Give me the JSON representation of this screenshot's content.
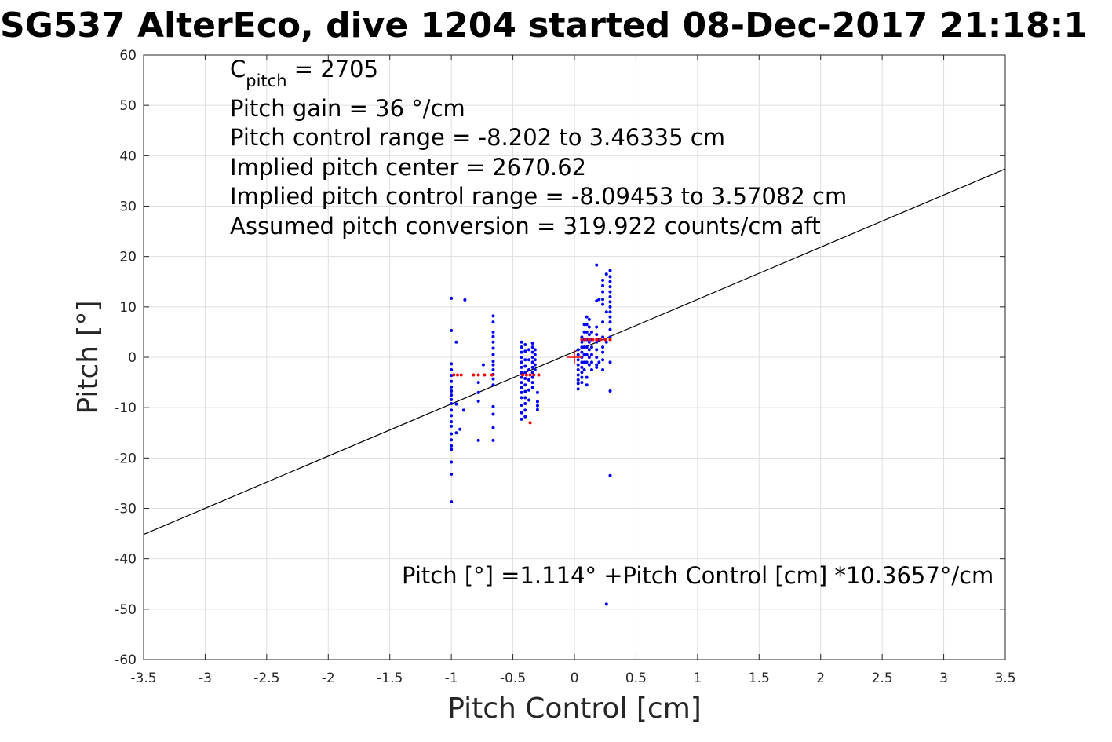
{
  "chart_data": {
    "type": "scatter",
    "title": "SG537 AlterEco, dive 1204 started 08-Dec-2017 21:18:1",
    "xlabel": "Pitch Control [cm]",
    "ylabel": "Pitch [°]",
    "xlim": [
      -3.5,
      3.5
    ],
    "ylim": [
      -60,
      60
    ],
    "grid": true,
    "x_ticks": [
      "-3.5",
      "-3",
      "-2.5",
      "-2",
      "-1.5",
      "-1",
      "-0.5",
      "0",
      "0.5",
      "1",
      "1.5",
      "2",
      "2.5",
      "3",
      "3.5"
    ],
    "y_ticks": [
      "60",
      "50",
      "40",
      "30",
      "20",
      "10",
      "0",
      "-10",
      "-20",
      "-30",
      "-40",
      "-50",
      "-60"
    ],
    "annotations": {
      "c_pitch_label": "C",
      "c_pitch_sub": "pitch",
      "c_pitch_value": " = 2705",
      "pitch_gain": "Pitch gain = 36 °/cm",
      "control_range": "Pitch control range = -8.202 to 3.46335 cm",
      "implied_center": "Implied pitch center = 2670.62",
      "implied_range": "Implied pitch control range = -8.09453 to 3.57082 cm",
      "conversion": "Assumed pitch conversion = 319.922 counts/cm aft",
      "fit_equation": "Pitch [°] =1.114° +Pitch Control [cm] *10.3657°/cm"
    },
    "fit": {
      "intercept": 1.114,
      "slope": 10.3657,
      "color": "#000000"
    },
    "center_marker": {
      "x": 0,
      "y": 0,
      "color": "#ff0000"
    },
    "series": [
      {
        "color": "#0000ff",
        "points": [
          [
            -1.0,
            11.7
          ],
          [
            -1.0,
            5.3
          ],
          [
            -1.0,
            -1.3
          ],
          [
            -1.0,
            -2.5
          ],
          [
            -1.0,
            -3.6
          ],
          [
            -1.0,
            -4.8
          ],
          [
            -1.0,
            -5.9
          ],
          [
            -1.0,
            -6.7
          ],
          [
            -1.0,
            -7.5
          ],
          [
            -1.0,
            -8.4
          ],
          [
            -1.0,
            -9.2
          ],
          [
            -1.0,
            -10.5
          ],
          [
            -1.0,
            -11.6
          ],
          [
            -1.0,
            -12.8
          ],
          [
            -1.0,
            -13.7
          ],
          [
            -1.0,
            -15.2
          ],
          [
            -1.0,
            -16.4
          ],
          [
            -1.0,
            -17.6
          ],
          [
            -1.0,
            -18.3
          ],
          [
            -1.0,
            -20.8
          ],
          [
            -1.0,
            -23.2
          ],
          [
            -1.0,
            -28.7
          ],
          [
            -0.96,
            3.0
          ],
          [
            -0.96,
            -9.3
          ],
          [
            -0.96,
            -15.0
          ],
          [
            -0.93,
            -14.3
          ],
          [
            -0.9,
            -10.5
          ],
          [
            -0.89,
            11.4
          ],
          [
            -0.78,
            -5.0
          ],
          [
            -0.78,
            -7.0
          ],
          [
            -0.78,
            -8.7
          ],
          [
            -0.78,
            -16.5
          ],
          [
            -0.74,
            -1.5
          ],
          [
            -0.66,
            8.2
          ],
          [
            -0.66,
            7.0
          ],
          [
            -0.66,
            5.0
          ],
          [
            -0.66,
            4.1
          ],
          [
            -0.66,
            3.0
          ],
          [
            -0.66,
            1.8
          ],
          [
            -0.66,
            0.5
          ],
          [
            -0.66,
            -0.8
          ],
          [
            -0.66,
            -1.5
          ],
          [
            -0.66,
            -2.5
          ],
          [
            -0.66,
            -3.4
          ],
          [
            -0.66,
            -4.3
          ],
          [
            -0.66,
            -5.5
          ],
          [
            -0.66,
            -9.8
          ],
          [
            -0.66,
            -11.3
          ],
          [
            -0.66,
            -14.0
          ],
          [
            -0.66,
            -16.5
          ],
          [
            -0.43,
            3.0
          ],
          [
            -0.43,
            2.0
          ],
          [
            -0.43,
            1.0
          ],
          [
            -0.43,
            0.0
          ],
          [
            -0.43,
            -1.0
          ],
          [
            -0.43,
            -2.0
          ],
          [
            -0.43,
            -3.0
          ],
          [
            -0.43,
            -4.0
          ],
          [
            -0.43,
            -5.0
          ],
          [
            -0.43,
            -6.0
          ],
          [
            -0.43,
            -7.0
          ],
          [
            -0.43,
            -8.0
          ],
          [
            -0.43,
            -9.5
          ],
          [
            -0.43,
            -11.0
          ],
          [
            -0.43,
            -12.3
          ],
          [
            -0.4,
            2.5
          ],
          [
            -0.4,
            1.2
          ],
          [
            -0.4,
            -0.5
          ],
          [
            -0.4,
            -1.8
          ],
          [
            -0.4,
            -3.0
          ],
          [
            -0.4,
            -4.2
          ],
          [
            -0.4,
            -5.5
          ],
          [
            -0.4,
            -6.8
          ],
          [
            -0.4,
            -8.0
          ],
          [
            -0.4,
            -9.2
          ],
          [
            -0.4,
            -10.5
          ],
          [
            -0.4,
            -11.8
          ],
          [
            -0.37,
            1.5
          ],
          [
            -0.37,
            -0.5
          ],
          [
            -0.37,
            -2.5
          ],
          [
            -0.37,
            -4.5
          ],
          [
            -0.37,
            -6.5
          ],
          [
            -0.37,
            -8.5
          ],
          [
            -0.34,
            2.8
          ],
          [
            -0.34,
            2.0
          ],
          [
            -0.34,
            1.0
          ],
          [
            -0.34,
            0.0
          ],
          [
            -0.34,
            -1.0
          ],
          [
            -0.34,
            -2.0
          ],
          [
            -0.34,
            -3.0
          ],
          [
            -0.34,
            -4.0
          ],
          [
            -0.34,
            -5.0
          ],
          [
            -0.34,
            -6.0
          ],
          [
            -0.32,
            1.5
          ],
          [
            -0.32,
            0.5
          ],
          [
            -0.32,
            -0.5
          ],
          [
            -0.32,
            -1.5
          ],
          [
            -0.32,
            -2.5
          ],
          [
            -0.3,
            -7.0
          ],
          [
            -0.3,
            -8.8
          ],
          [
            -0.3,
            -9.6
          ],
          [
            -0.3,
            -10.4
          ],
          [
            0.03,
            1.5
          ],
          [
            0.03,
            0.5
          ],
          [
            0.03,
            -0.5
          ],
          [
            0.03,
            -1.5
          ],
          [
            0.03,
            -2.5
          ],
          [
            0.03,
            -3.5
          ],
          [
            0.03,
            -4.5
          ],
          [
            0.03,
            -5.2
          ],
          [
            0.03,
            -6.3
          ],
          [
            0.06,
            4.0
          ],
          [
            0.06,
            3.0
          ],
          [
            0.06,
            2.0
          ],
          [
            0.06,
            1.0
          ],
          [
            0.06,
            0.0
          ],
          [
            0.06,
            -1.0
          ],
          [
            0.06,
            -2.0
          ],
          [
            0.06,
            -3.0
          ],
          [
            0.06,
            -4.0
          ],
          [
            0.06,
            -5.0
          ],
          [
            0.08,
            6.5
          ],
          [
            0.08,
            5.0
          ],
          [
            0.08,
            3.5
          ],
          [
            0.08,
            2.0
          ],
          [
            0.08,
            0.5
          ],
          [
            0.08,
            -1.0
          ],
          [
            0.08,
            -2.5
          ],
          [
            0.1,
            8.0
          ],
          [
            0.1,
            6.5
          ],
          [
            0.1,
            5.0
          ],
          [
            0.1,
            3.5
          ],
          [
            0.1,
            2.0
          ],
          [
            0.1,
            0.5
          ],
          [
            0.1,
            -1.0
          ],
          [
            0.1,
            -4.0
          ],
          [
            0.1,
            -5.5
          ],
          [
            0.12,
            7.5
          ],
          [
            0.12,
            6.0
          ],
          [
            0.12,
            4.5
          ],
          [
            0.12,
            3.0
          ],
          [
            0.12,
            1.5
          ],
          [
            0.12,
            0.0
          ],
          [
            0.12,
            -1.5
          ],
          [
            0.14,
            5.0
          ],
          [
            0.14,
            3.5
          ],
          [
            0.14,
            2.0
          ],
          [
            0.14,
            0.5
          ],
          [
            0.14,
            -1.0
          ],
          [
            0.14,
            -2.5
          ],
          [
            0.18,
            18.3
          ],
          [
            0.18,
            11.2
          ],
          [
            0.18,
            6.0
          ],
          [
            0.18,
            4.5
          ],
          [
            0.18,
            3.0
          ],
          [
            0.18,
            1.5
          ],
          [
            0.18,
            0.0
          ],
          [
            0.18,
            -1.5
          ],
          [
            0.18,
            -2.0
          ],
          [
            0.2,
            11.5
          ],
          [
            0.2,
            3.5
          ],
          [
            0.2,
            -1.0
          ],
          [
            0.23,
            15.3
          ],
          [
            0.23,
            14.2
          ],
          [
            0.23,
            13.0
          ],
          [
            0.23,
            11.5
          ],
          [
            0.23,
            10.5
          ],
          [
            0.23,
            7.0
          ],
          [
            0.23,
            4.0
          ],
          [
            0.23,
            2.0
          ],
          [
            0.23,
            1.0
          ],
          [
            0.23,
            -0.5
          ],
          [
            0.23,
            -2.5
          ],
          [
            0.26,
            16.5
          ],
          [
            0.26,
            9.0
          ],
          [
            0.26,
            3.0
          ],
          [
            0.26,
            -49.0
          ],
          [
            0.29,
            17.2
          ],
          [
            0.29,
            16.0
          ],
          [
            0.29,
            15.0
          ],
          [
            0.29,
            14.0
          ],
          [
            0.29,
            13.0
          ],
          [
            0.29,
            12.0
          ],
          [
            0.29,
            11.0
          ],
          [
            0.29,
            10.0
          ],
          [
            0.29,
            9.0
          ],
          [
            0.29,
            8.0
          ],
          [
            0.29,
            7.0
          ],
          [
            0.29,
            5.5
          ],
          [
            0.29,
            4.0
          ],
          [
            0.29,
            -1.0
          ],
          [
            0.29,
            -6.7
          ],
          [
            0.29,
            -23.5
          ]
        ]
      },
      {
        "color": "#ff0000",
        "points": [
          [
            -0.98,
            -3.5
          ],
          [
            -0.95,
            -3.5
          ],
          [
            -0.92,
            -3.5
          ],
          [
            -0.82,
            -3.5
          ],
          [
            -0.78,
            -3.5
          ],
          [
            -0.73,
            -3.5
          ],
          [
            -0.67,
            -3.5
          ],
          [
            -0.42,
            -3.5
          ],
          [
            -0.39,
            -3.5
          ],
          [
            -0.36,
            -3.5
          ],
          [
            -0.33,
            -3.5
          ],
          [
            -0.29,
            -3.5
          ],
          [
            -0.36,
            -13.0
          ],
          [
            0.06,
            3.5
          ],
          [
            0.09,
            3.5
          ],
          [
            0.12,
            3.5
          ],
          [
            0.15,
            3.5
          ],
          [
            0.18,
            3.5
          ],
          [
            0.21,
            3.5
          ],
          [
            0.25,
            3.5
          ],
          [
            0.29,
            3.5
          ]
        ]
      }
    ]
  }
}
